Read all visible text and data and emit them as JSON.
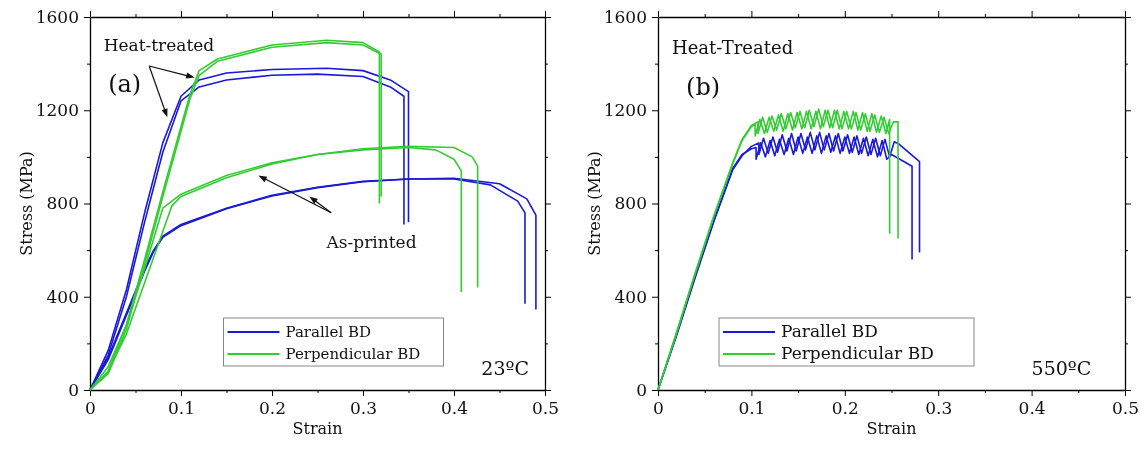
{
  "chart_data": [
    {
      "type": "line",
      "xlabel": "Strain",
      "ylabel": "Stress (MPa)",
      "xlim": [
        0,
        0.5
      ],
      "ylim": [
        0,
        1600
      ],
      "legend": "bottom",
      "marker": "none",
      "line_style": "solid",
      "xticks": [
        0,
        {
          "value": 0.05,
          "label": null
        },
        0.1,
        {
          "value": 0.15,
          "label": null
        },
        0.2,
        {
          "value": 0.25,
          "label": null
        },
        0.3,
        {
          "value": 0.35,
          "label": null
        },
        0.4,
        {
          "value": 0.45,
          "label": null
        },
        0.5
      ],
      "yticks": [
        0,
        {
          "value": 200,
          "label": null
        },
        400,
        {
          "value": 600,
          "label": null
        },
        800,
        {
          "value": 1000,
          "label": null
        },
        1200,
        {
          "value": 1400,
          "label": null
        },
        1600
      ],
      "annotations": [
        "Heat-treated",
        "(a)",
        "As-printed",
        "23ºC"
      ],
      "series": [
        {
          "name": "Parallel BD",
          "color": "#1a1ad6",
          "x": [
            0,
            0.02,
            0.04,
            0.06,
            0.08,
            0.1,
            0.12,
            0.15,
            0.2,
            0.25,
            0.3,
            0.33,
            0.345,
            0.345
          ],
          "values": [
            0,
            150,
            400,
            720,
            1020,
            1240,
            1300,
            1330,
            1350,
            1355,
            1345,
            1300,
            1260,
            710
          ]
        },
        {
          "color": "#1a1ad6",
          "x": [
            0,
            0.02,
            0.04,
            0.06,
            0.08,
            0.1,
            0.12,
            0.15,
            0.2,
            0.26,
            0.3,
            0.33,
            0.35,
            0.35
          ],
          "values": [
            0,
            170,
            430,
            760,
            1060,
            1260,
            1330,
            1360,
            1375,
            1380,
            1370,
            1330,
            1280,
            720
          ]
        },
        {
          "color": "#1a1ad6",
          "x": [
            0,
            0.02,
            0.04,
            0.06,
            0.07,
            0.08,
            0.1,
            0.15,
            0.2,
            0.25,
            0.3,
            0.35,
            0.4,
            0.44,
            0.47,
            0.478,
            0.478
          ],
          "values": [
            0,
            140,
            330,
            520,
            600,
            660,
            710,
            780,
            835,
            870,
            895,
            905,
            905,
            880,
            810,
            760,
            370
          ]
        },
        {
          "color": "#1a1ad6",
          "x": [
            0,
            0.02,
            0.04,
            0.06,
            0.07,
            0.08,
            0.1,
            0.15,
            0.2,
            0.25,
            0.3,
            0.35,
            0.4,
            0.45,
            0.48,
            0.49,
            0.49
          ],
          "values": [
            0,
            130,
            320,
            510,
            595,
            655,
            705,
            778,
            832,
            868,
            893,
            905,
            908,
            885,
            820,
            750,
            345
          ]
        },
        {
          "name": "Perpendicular BD",
          "color": "#33cc33",
          "x": [
            0,
            0.02,
            0.04,
            0.06,
            0.08,
            0.1,
            0.11,
            0.12,
            0.14,
            0.2,
            0.26,
            0.3,
            0.318,
            0.318
          ],
          "values": [
            0,
            80,
            280,
            560,
            850,
            1130,
            1270,
            1370,
            1420,
            1480,
            1500,
            1490,
            1450,
            800
          ]
        },
        {
          "color": "#33cc33",
          "x": [
            0,
            0.02,
            0.04,
            0.06,
            0.08,
            0.1,
            0.11,
            0.12,
            0.14,
            0.2,
            0.26,
            0.3,
            0.32,
            0.32
          ],
          "values": [
            0,
            70,
            260,
            540,
            830,
            1110,
            1250,
            1350,
            1410,
            1470,
            1490,
            1480,
            1440,
            830
          ]
        },
        {
          "color": "#33cc33",
          "x": [
            0,
            0.02,
            0.04,
            0.06,
            0.08,
            0.1,
            0.15,
            0.2,
            0.25,
            0.3,
            0.35,
            0.38,
            0.4,
            0.408,
            0.408
          ],
          "values": [
            0,
            100,
            280,
            520,
            780,
            840,
            920,
            975,
            1010,
            1030,
            1040,
            1030,
            990,
            940,
            420
          ]
        },
        {
          "color": "#33cc33",
          "x": [
            0,
            0.02,
            0.04,
            0.06,
            0.08,
            0.09,
            0.1,
            0.15,
            0.2,
            0.25,
            0.3,
            0.35,
            0.4,
            0.42,
            0.426,
            0.426
          ],
          "values": [
            0,
            80,
            240,
            460,
            680,
            790,
            830,
            910,
            970,
            1010,
            1035,
            1045,
            1040,
            1000,
            960,
            440
          ]
        }
      ]
    },
    {
      "type": "line",
      "xlabel": "Strain",
      "ylabel": "Stress (MPa)",
      "xlim": [
        0,
        0.5
      ],
      "ylim": [
        0,
        1600
      ],
      "legend": "bottom",
      "marker": "none",
      "line_style": "solid",
      "xticks": [
        0,
        {
          "value": 0.05,
          "label": null
        },
        0.1,
        {
          "value": 0.15,
          "label": null
        },
        0.2,
        {
          "value": 0.25,
          "label": null
        },
        0.3,
        {
          "value": 0.35,
          "label": null
        },
        0.4,
        {
          "value": 0.45,
          "label": null
        },
        0.5
      ],
      "yticks": [
        0,
        {
          "value": 200,
          "label": null
        },
        400,
        {
          "value": 600,
          "label": null
        },
        800,
        {
          "value": 1000,
          "label": null
        },
        1200,
        {
          "value": 1400,
          "label": null
        },
        1600
      ],
      "annotations": [
        "Heat-Treated",
        "(b)",
        "550ºC"
      ],
      "series": [
        {
          "name": "Parallel BD",
          "color": "#1a1ad6",
          "x": [
            0,
            0.02,
            0.04,
            0.06,
            0.08,
            0.09,
            0.1,
            0.105,
            0.105,
            0.11,
            0.115,
            0.12,
            0.125,
            0.13,
            0.135,
            0.14,
            0.145,
            0.15,
            0.155,
            0.16,
            0.165,
            0.17,
            0.175,
            0.18,
            0.185,
            0.19,
            0.195,
            0.2,
            0.205,
            0.21,
            0.215,
            0.22,
            0.225,
            0.23,
            0.235,
            0.24,
            0.245,
            0.25,
            0.272,
            0.272
          ],
          "values": [
            0,
            240,
            490,
            730,
            950,
            1010,
            1035,
            1040,
            990,
            1060,
            1000,
            1070,
            1005,
            1075,
            1010,
            1080,
            1010,
            1085,
            1015,
            1085,
            1015,
            1090,
            1015,
            1090,
            1020,
            1090,
            1015,
            1085,
            1015,
            1085,
            1010,
            1080,
            1005,
            1075,
            1000,
            1070,
            990,
            1010,
            960,
            560
          ]
        },
        {
          "color": "#1a1ad6",
          "x": [
            0,
            0.02,
            0.04,
            0.06,
            0.08,
            0.09,
            0.1,
            0.108,
            0.108,
            0.113,
            0.118,
            0.123,
            0.128,
            0.133,
            0.138,
            0.143,
            0.148,
            0.153,
            0.158,
            0.163,
            0.168,
            0.173,
            0.178,
            0.183,
            0.188,
            0.193,
            0.198,
            0.203,
            0.208,
            0.213,
            0.218,
            0.223,
            0.228,
            0.233,
            0.238,
            0.243,
            0.248,
            0.253,
            0.258,
            0.28,
            0.28
          ],
          "values": [
            0,
            235,
            485,
            725,
            945,
            1005,
            1045,
            1060,
            1010,
            1080,
            1015,
            1085,
            1020,
            1095,
            1025,
            1100,
            1025,
            1100,
            1030,
            1105,
            1030,
            1105,
            1030,
            1100,
            1025,
            1100,
            1025,
            1095,
            1020,
            1090,
            1015,
            1085,
            1010,
            1080,
            1005,
            1075,
            1000,
            1065,
            1055,
            980,
            590
          ]
        },
        {
          "name": "Perpendicular BD",
          "color": "#33cc33",
          "x": [
            0,
            0.02,
            0.04,
            0.06,
            0.08,
            0.09,
            0.1,
            0.104,
            0.104,
            0.109,
            0.114,
            0.119,
            0.124,
            0.129,
            0.134,
            0.139,
            0.144,
            0.149,
            0.154,
            0.159,
            0.164,
            0.169,
            0.174,
            0.179,
            0.184,
            0.189,
            0.194,
            0.199,
            0.204,
            0.209,
            0.214,
            0.219,
            0.224,
            0.229,
            0.234,
            0.239,
            0.244,
            0.248,
            0.248
          ],
          "values": [
            0,
            245,
            500,
            745,
            970,
            1070,
            1130,
            1140,
            1090,
            1160,
            1100,
            1170,
            1110,
            1180,
            1110,
            1185,
            1115,
            1190,
            1120,
            1195,
            1120,
            1195,
            1120,
            1200,
            1125,
            1200,
            1120,
            1195,
            1120,
            1195,
            1115,
            1190,
            1110,
            1185,
            1105,
            1175,
            1100,
            1160,
            670
          ]
        },
        {
          "color": "#33cc33",
          "x": [
            0,
            0.02,
            0.04,
            0.06,
            0.08,
            0.09,
            0.1,
            0.107,
            0.107,
            0.112,
            0.117,
            0.122,
            0.127,
            0.132,
            0.137,
            0.142,
            0.147,
            0.152,
            0.157,
            0.162,
            0.167,
            0.172,
            0.177,
            0.182,
            0.187,
            0.192,
            0.197,
            0.202,
            0.207,
            0.212,
            0.217,
            0.222,
            0.227,
            0.232,
            0.237,
            0.242,
            0.247,
            0.252,
            0.257,
            0.257
          ],
          "values": [
            0,
            250,
            505,
            750,
            975,
            1075,
            1135,
            1150,
            1100,
            1170,
            1105,
            1175,
            1115,
            1185,
            1120,
            1190,
            1125,
            1195,
            1125,
            1200,
            1130,
            1205,
            1130,
            1200,
            1125,
            1200,
            1120,
            1195,
            1120,
            1190,
            1115,
            1185,
            1110,
            1180,
            1105,
            1170,
            1100,
            1150,
            1150,
            650
          ]
        }
      ]
    }
  ]
}
